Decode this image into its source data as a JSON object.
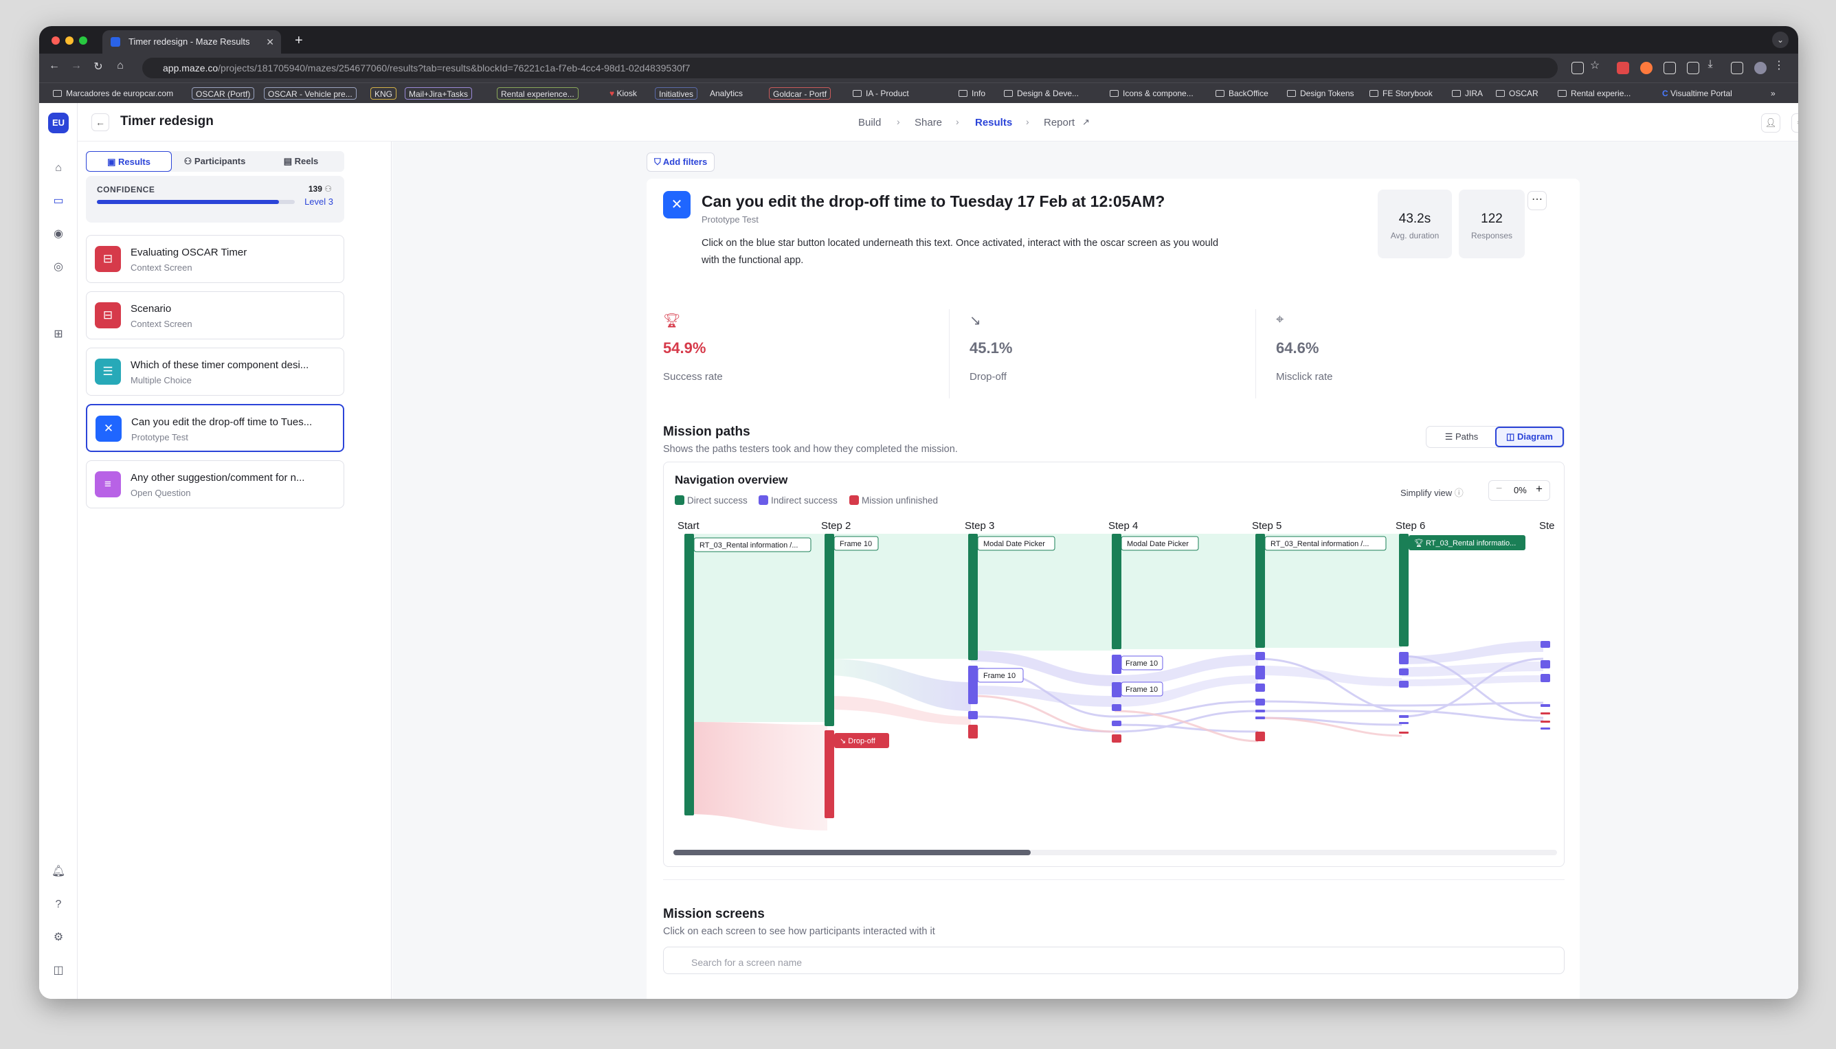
{
  "browser": {
    "tab_title": "Timer redesign - Maze Results",
    "url_host": "app.maze.co",
    "url_path": "/projects/181705940/mazes/254677060/results?tab=results&blockId=76221c1a-f7eb-4cc4-98d1-02d4839530f7",
    "bookmarks": [
      "Marcadores de europcar.com",
      "OSCAR (Portf)",
      "OSCAR - Vehicle pre...",
      "KNG",
      "Mail+Jira+Tasks",
      "Rental experience...",
      "Kiosk",
      "Initiatives",
      "Analytics",
      "Goldcar - Portf",
      "IA - Product",
      "Info",
      "Design & Deve...",
      "Icons & compone...",
      "BackOffice",
      "Design Tokens",
      "FE Storybook",
      "JIRA",
      "OSCAR",
      "Rental experie...",
      "Visualtime Portal"
    ]
  },
  "rail": {
    "avatar": "EU"
  },
  "header": {
    "title": "Timer redesign",
    "crumbs": [
      "Build",
      "Share",
      "Results",
      "Report"
    ]
  },
  "sidebar": {
    "tabs": [
      "Results",
      "Participants",
      "Reels"
    ],
    "confidence": {
      "label": "CONFIDENCE",
      "count": "139",
      "level": "Level 3",
      "progress": 0.92
    },
    "blocks": [
      {
        "title": "Evaluating OSCAR Timer",
        "subtitle": "Context Screen",
        "icon": "context-screen-icon",
        "color": "#d63a4a"
      },
      {
        "title": "Scenario",
        "subtitle": "Context Screen",
        "icon": "context-screen-icon",
        "color": "#d63a4a"
      },
      {
        "title": "Which of these timer component desi...",
        "subtitle": "Multiple Choice",
        "icon": "multiple-choice-icon",
        "color": "#27a9b8"
      },
      {
        "title": "Can you edit the drop-off time to Tues...",
        "subtitle": "Prototype Test",
        "icon": "prototype-test-icon",
        "color": "#1f66ff"
      },
      {
        "title": "Any other suggestion/comment for n...",
        "subtitle": "Open Question",
        "icon": "open-question-icon",
        "color": "#b862e6"
      }
    ]
  },
  "main": {
    "add_filters": "Add filters",
    "question": {
      "title": "Can you edit the drop-off time to Tuesday 17 Feb at 12:05AM?",
      "type": "Prototype Test",
      "description": "Click on the blue star button located underneath this text. Once activated, interact with the oscar screen as you would with the functional app."
    },
    "kpis": [
      {
        "value": "43.2s",
        "label": "Avg. duration"
      },
      {
        "value": "122",
        "label": "Responses"
      }
    ],
    "metrics": [
      {
        "value": "54.9%",
        "label": "Success rate",
        "color": "#d63a4a",
        "icon": "trophy-icon"
      },
      {
        "value": "45.1%",
        "label": "Drop-off",
        "color": "#6b6e7c",
        "icon": "drop-off-icon"
      },
      {
        "value": "64.6%",
        "label": "Misclick rate",
        "color": "#6b6e7c",
        "icon": "misclick-icon"
      }
    ],
    "mission_paths": {
      "title": "Mission paths",
      "subtitle": "Shows the paths testers took and how they completed the mission.",
      "toggle": [
        "Paths",
        "Diagram"
      ]
    },
    "navigation": {
      "title": "Navigation overview",
      "legend": [
        {
          "label": "Direct success",
          "color": "#1a7f56"
        },
        {
          "label": "Indirect success",
          "color": "#6a5ce8"
        },
        {
          "label": "Mission unfinished",
          "color": "#d63a4a"
        }
      ],
      "simplify_label": "Simplify view",
      "simplify_value": "0%",
      "steps": [
        "Start",
        "Step 2",
        "Step 3",
        "Step 4",
        "Step 5",
        "Step 6",
        "Ste"
      ],
      "node_labels": {
        "start": "RT_03_Rental information /...",
        "step2": "Frame 10",
        "step2_drop": "Drop-off",
        "step3": "Modal Date Picker",
        "step3_frame": "Frame 10",
        "step4": "Modal Date Picker",
        "step4_frame_a": "Frame 10",
        "step4_frame_b": "Frame 10",
        "step5": "RT_03_Rental information /...",
        "step6": "RT_03_Rental informatio..."
      }
    },
    "mission_screens": {
      "title": "Mission screens",
      "subtitle": "Click on each screen to see how participants interacted with it",
      "search_placeholder": "Search for a screen name"
    }
  }
}
